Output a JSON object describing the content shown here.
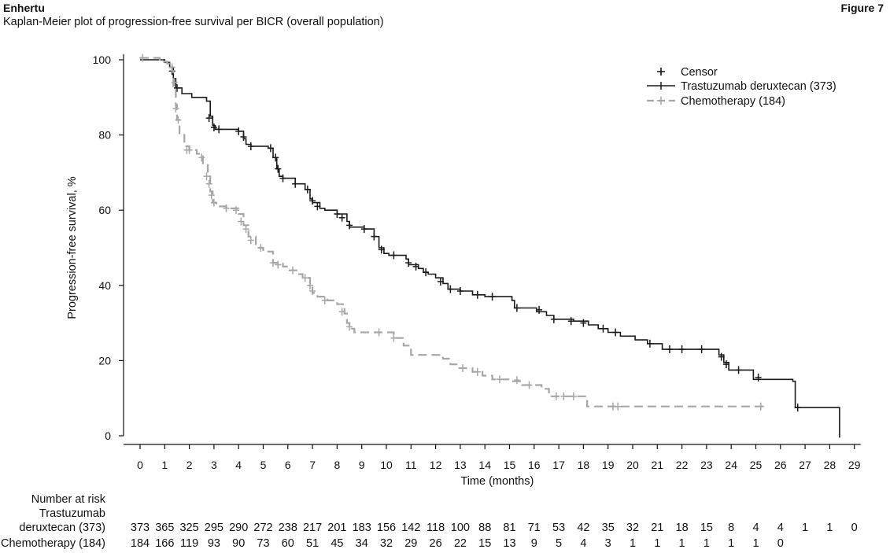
{
  "header": {
    "brand": "Enhertu",
    "subtitle": "Kaplan-Meier plot of progression-free survival per BICR (overall population)",
    "figure_label": "Figure 7"
  },
  "chart_data": {
    "type": "line",
    "chart_subtype": "kaplan-meier",
    "xlabel": "Time (months)",
    "ylabel": "Progression-free survival, %",
    "xlim": [
      0,
      29
    ],
    "ylim": [
      0,
      100
    ],
    "x_ticks": [
      0,
      1,
      2,
      3,
      4,
      5,
      6,
      7,
      8,
      9,
      10,
      11,
      12,
      13,
      14,
      15,
      16,
      17,
      18,
      19,
      20,
      21,
      22,
      23,
      24,
      25,
      26,
      27,
      28,
      29
    ],
    "y_ticks": [
      0,
      20,
      40,
      60,
      80,
      100
    ],
    "grid": false,
    "legend": {
      "placement": "top-right",
      "censor_label": "Censor",
      "entries": [
        "Trastuzumab deruxtecan (373)",
        "Chemotherapy (184)"
      ]
    },
    "colors": {
      "td": "#1a1a1a",
      "chemo": "#a6a6a6"
    },
    "series": [
      {
        "name": "Trastuzumab deruxtecan (373)",
        "style": "solid",
        "steps": [
          [
            0,
            100
          ],
          [
            0.4,
            100
          ],
          [
            1,
            99.3
          ],
          [
            1.2,
            98
          ],
          [
            1.35,
            95
          ],
          [
            1.45,
            92.5
          ],
          [
            1.7,
            91
          ],
          [
            2.1,
            90
          ],
          [
            2.7,
            89
          ],
          [
            2.85,
            85
          ],
          [
            2.95,
            82.5
          ],
          [
            3.05,
            81.5
          ],
          [
            3.4,
            81.5
          ],
          [
            4.0,
            81
          ],
          [
            4.2,
            79
          ],
          [
            4.3,
            77.5
          ],
          [
            4.5,
            77
          ],
          [
            5.2,
            76.5
          ],
          [
            5.4,
            74
          ],
          [
            5.55,
            71
          ],
          [
            5.65,
            69
          ],
          [
            5.8,
            68.5
          ],
          [
            6.3,
            67
          ],
          [
            6.7,
            65.5
          ],
          [
            6.9,
            63
          ],
          [
            7.0,
            62
          ],
          [
            7.3,
            60.5
          ],
          [
            7.5,
            60
          ],
          [
            8.0,
            59
          ],
          [
            8.4,
            57
          ],
          [
            8.5,
            55.5
          ],
          [
            9.1,
            55
          ],
          [
            9.5,
            53
          ],
          [
            9.7,
            50
          ],
          [
            9.9,
            48.5
          ],
          [
            10.1,
            48
          ],
          [
            10.8,
            47
          ],
          [
            10.9,
            45.5
          ],
          [
            11.3,
            44.5
          ],
          [
            11.5,
            43.5
          ],
          [
            11.7,
            43
          ],
          [
            12.0,
            42
          ],
          [
            12.3,
            40.5
          ],
          [
            12.5,
            39
          ],
          [
            13.0,
            38.5
          ],
          [
            13.5,
            37.5
          ],
          [
            14.0,
            37
          ],
          [
            15.1,
            36
          ],
          [
            15.2,
            34
          ],
          [
            16.1,
            33
          ],
          [
            16.5,
            32
          ],
          [
            16.8,
            31
          ],
          [
            17.6,
            30.5
          ],
          [
            18.2,
            29.5
          ],
          [
            18.6,
            28.5
          ],
          [
            19.0,
            27.5
          ],
          [
            19.5,
            26.5
          ],
          [
            20.1,
            25.5
          ],
          [
            20.6,
            24.5
          ],
          [
            21.2,
            23
          ],
          [
            23.5,
            21.5
          ],
          [
            23.7,
            19.5
          ],
          [
            23.9,
            17.5
          ],
          [
            24.9,
            15
          ],
          [
            26.5,
            14.5
          ],
          [
            26.6,
            7.5
          ],
          [
            28.35,
            7.5
          ],
          [
            28.4,
            -0.5
          ]
        ],
        "censors": [
          [
            1.3,
            97
          ],
          [
            1.5,
            92.5
          ],
          [
            2.8,
            84.5
          ],
          [
            3.0,
            82
          ],
          [
            3.2,
            81.5
          ],
          [
            4.0,
            81
          ],
          [
            4.2,
            79.5
          ],
          [
            4.5,
            77
          ],
          [
            5.3,
            76.5
          ],
          [
            5.5,
            74
          ],
          [
            5.6,
            71
          ],
          [
            5.8,
            68.5
          ],
          [
            6.3,
            67
          ],
          [
            6.8,
            65.5
          ],
          [
            7.0,
            62.5
          ],
          [
            7.2,
            61
          ],
          [
            8.0,
            59
          ],
          [
            8.2,
            58
          ],
          [
            8.5,
            56
          ],
          [
            9.1,
            55
          ],
          [
            9.5,
            53
          ],
          [
            9.8,
            49.5
          ],
          [
            10.3,
            48
          ],
          [
            10.9,
            46
          ],
          [
            11.2,
            45
          ],
          [
            11.6,
            43.5
          ],
          [
            12.2,
            41
          ],
          [
            12.6,
            39
          ],
          [
            13.0,
            38.5
          ],
          [
            13.7,
            37.5
          ],
          [
            14.3,
            37
          ],
          [
            15.3,
            34
          ],
          [
            16.2,
            33.5
          ],
          [
            16.8,
            31
          ],
          [
            17.5,
            30.5
          ],
          [
            18.0,
            30
          ],
          [
            18.8,
            28.5
          ],
          [
            19.3,
            27.5
          ],
          [
            20.7,
            24.5
          ],
          [
            21.5,
            23
          ],
          [
            22.0,
            23
          ],
          [
            22.8,
            23
          ],
          [
            23.6,
            21
          ],
          [
            23.8,
            19
          ],
          [
            24.3,
            17.5
          ],
          [
            25.1,
            15.5
          ],
          [
            26.7,
            7.5
          ]
        ]
      },
      {
        "name": "Chemotherapy (184)",
        "style": "dashed",
        "steps": [
          [
            0,
            100.5
          ],
          [
            0.8,
            99.5
          ],
          [
            1.1,
            99
          ],
          [
            1.3,
            97
          ],
          [
            1.35,
            93
          ],
          [
            1.45,
            88
          ],
          [
            1.5,
            84
          ],
          [
            1.6,
            80
          ],
          [
            1.8,
            77
          ],
          [
            2.0,
            76
          ],
          [
            2.3,
            75
          ],
          [
            2.55,
            72
          ],
          [
            2.75,
            69
          ],
          [
            2.85,
            65
          ],
          [
            2.95,
            62
          ],
          [
            3.1,
            61
          ],
          [
            3.5,
            60.5
          ],
          [
            4.0,
            59
          ],
          [
            4.2,
            56
          ],
          [
            4.4,
            53
          ],
          [
            4.7,
            50
          ],
          [
            5.0,
            49
          ],
          [
            5.4,
            46
          ],
          [
            5.8,
            45
          ],
          [
            6.0,
            44
          ],
          [
            6.4,
            43
          ],
          [
            6.6,
            42
          ],
          [
            6.9,
            40
          ],
          [
            7.0,
            38
          ],
          [
            7.2,
            37
          ],
          [
            7.6,
            36
          ],
          [
            8.0,
            35
          ],
          [
            8.3,
            32.5
          ],
          [
            8.4,
            30
          ],
          [
            8.5,
            28.5
          ],
          [
            8.7,
            27.5
          ],
          [
            10.0,
            27.5
          ],
          [
            10.3,
            26
          ],
          [
            10.7,
            24
          ],
          [
            11.0,
            21.5
          ],
          [
            12.3,
            20.5
          ],
          [
            12.6,
            19
          ],
          [
            12.9,
            18
          ],
          [
            13.5,
            17
          ],
          [
            13.9,
            16
          ],
          [
            14.3,
            15
          ],
          [
            15.1,
            14.5
          ],
          [
            15.5,
            13.5
          ],
          [
            16.3,
            12.5
          ],
          [
            16.6,
            10.5
          ],
          [
            18.1,
            10.5
          ],
          [
            18.15,
            7.8
          ],
          [
            25.3,
            7.8
          ]
        ],
        "censors": [
          [
            0.1,
            100.5
          ],
          [
            1.3,
            98
          ],
          [
            1.4,
            94
          ],
          [
            1.45,
            87
          ],
          [
            1.55,
            84
          ],
          [
            1.9,
            76
          ],
          [
            2.0,
            76
          ],
          [
            2.5,
            74
          ],
          [
            2.7,
            69
          ],
          [
            2.8,
            67
          ],
          [
            2.9,
            64
          ],
          [
            3.0,
            62
          ],
          [
            3.5,
            60.5
          ],
          [
            3.9,
            60
          ],
          [
            4.1,
            57
          ],
          [
            4.3,
            55
          ],
          [
            4.5,
            52
          ],
          [
            4.9,
            50
          ],
          [
            5.4,
            46
          ],
          [
            5.6,
            45.5
          ],
          [
            6.2,
            44
          ],
          [
            6.7,
            42
          ],
          [
            6.9,
            40
          ],
          [
            7.0,
            38.5
          ],
          [
            7.5,
            36
          ],
          [
            8.2,
            33
          ],
          [
            8.5,
            29
          ],
          [
            9.7,
            27.5
          ],
          [
            10.3,
            26
          ],
          [
            13.1,
            18
          ],
          [
            13.7,
            17
          ],
          [
            14.6,
            15
          ],
          [
            15.3,
            14.8
          ],
          [
            15.8,
            13.5
          ],
          [
            16.9,
            10.5
          ],
          [
            17.2,
            10.5
          ],
          [
            17.6,
            10.5
          ],
          [
            19.2,
            7.8
          ],
          [
            19.4,
            7.8
          ],
          [
            25.2,
            7.8
          ]
        ]
      }
    ],
    "risk_table": {
      "title": "Number at risk",
      "rows": [
        {
          "label_line1": "Trastuzumab",
          "label_line2": "deruxtecan (373)",
          "values": [
            "373",
            "365",
            "325",
            "295",
            "290",
            "272",
            "238",
            "217",
            "201",
            "183",
            "156",
            "142",
            "118",
            "100",
            "88",
            "81",
            "71",
            "53",
            "42",
            "35",
            "32",
            "21",
            "18",
            "15",
            "8",
            "4",
            "4",
            "1",
            "1",
            "0"
          ]
        },
        {
          "label_line1": "",
          "label_line2": "Chemotherapy (184)",
          "values": [
            "184",
            "166",
            "119",
            "93",
            "90",
            "73",
            "60",
            "51",
            "45",
            "34",
            "32",
            "29",
            "26",
            "22",
            "15",
            "13",
            "9",
            "5",
            "4",
            "3",
            "1",
            "1",
            "1",
            "1",
            "1",
            "1",
            "0"
          ]
        }
      ]
    }
  }
}
